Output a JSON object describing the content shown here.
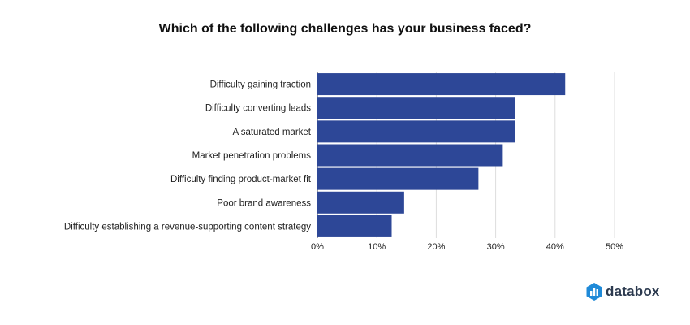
{
  "colors": {
    "bar": "#2d4797",
    "grid": "#dddddd",
    "axis": "#444444",
    "brand_blue": "#1f8ad8",
    "brand_text": "#2c3a4f"
  },
  "brand": {
    "name": "databox",
    "icon": "databox-logo-icon"
  },
  "chart_data": {
    "type": "bar",
    "orientation": "horizontal",
    "title": "Which of the following challenges has your business faced?",
    "xlabel": "",
    "ylabel": "",
    "xlim": [
      0,
      50
    ],
    "xticks": [
      0,
      10,
      20,
      30,
      40,
      50
    ],
    "tick_suffix": "%",
    "grid": true,
    "categories": [
      "Difficulty gaining traction",
      "Difficulty converting leads",
      "A saturated market",
      "Market penetration problems",
      "Difficulty finding product-market fit",
      "Poor brand awareness",
      "Difficulty establishing a revenue-supporting content strategy"
    ],
    "values": [
      41.7,
      33.3,
      33.3,
      31.2,
      27.1,
      14.6,
      12.5
    ]
  }
}
